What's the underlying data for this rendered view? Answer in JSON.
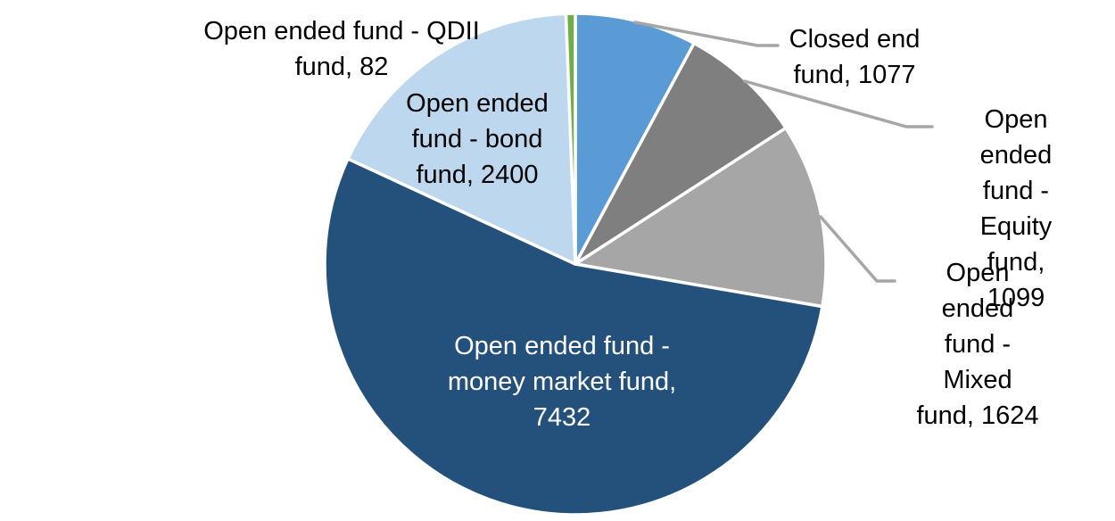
{
  "chart_data": {
    "type": "pie",
    "title": "",
    "total": 13714,
    "start_angle_deg": 0,
    "direction": "clockwise",
    "legend": "none",
    "background_color": "#FFFFFF",
    "slice_border_color": "#FFFFFF",
    "leader_line_color": "#A6A6A6",
    "slices": [
      {
        "name": "Closed end fund",
        "value": 1077,
        "color": "#5B9BD5",
        "display_text": "Closed end\nfund, 1077",
        "label_color": "#000000",
        "label_placement": "outside-right-leader"
      },
      {
        "name": "Open ended fund - Equity fund",
        "value": 1099,
        "color": "#7F7F7F",
        "display_text": "Open ended\nfund - Equity\nfund, 1099",
        "label_color": "#000000",
        "label_placement": "outside-right-leader"
      },
      {
        "name": "Open ended fund - Mixed fund",
        "value": 1624,
        "color": "#A6A6A6",
        "display_text": "Open ended\nfund - Mixed\nfund, 1624",
        "label_color": "#000000",
        "label_placement": "outside-right-leader"
      },
      {
        "name": "Open ended fund - money market fund",
        "value": 7432,
        "color": "#24517B",
        "display_text": "Open ended fund -\nmoney market fund,\n7432",
        "label_color": "#FFFFFF",
        "label_placement": "inside"
      },
      {
        "name": "Open ended fund - bond fund",
        "value": 2400,
        "color": "#BDD7EE",
        "display_text": "Open ended\nfund - bond\nfund, 2400",
        "label_color": "#000000",
        "label_placement": "inside"
      },
      {
        "name": "Open ended fund - QDII fund",
        "value": 82,
        "color": "#70AD47",
        "display_text": "Open ended fund - QDII\nfund, 82",
        "label_color": "#000000",
        "label_placement": "outside-left"
      }
    ]
  }
}
